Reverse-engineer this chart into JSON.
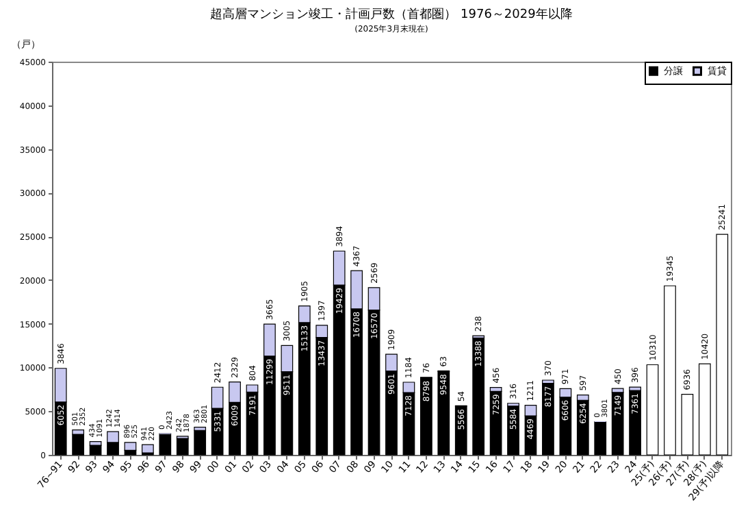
{
  "chart_data": {
    "type": "bar",
    "title": "超高層マンション竣工・計画戸数（首都圏） 1976～2029年以降",
    "ylabel": "（戸）",
    "categories": [
      "76~91",
      "92",
      "93",
      "94",
      "95",
      "96",
      "97",
      "98",
      "99",
      "00",
      "01",
      "02",
      "03",
      "04",
      "05",
      "06",
      "07",
      "08",
      "09",
      "10",
      "11",
      "12",
      "13",
      "14",
      "15",
      "16",
      "17",
      "18",
      "19",
      "20",
      "21",
      "22",
      "23",
      "24",
      "25(予)",
      "26(予)",
      "27(予)",
      "28(予)",
      "29(予)以降"
    ],
    "stacked": true,
    "data_labels": true,
    "legend": "top right",
    "ylim": [
      0,
      45000
    ],
    "yticks": [
      0,
      5000,
      10000,
      15000,
      20000,
      25000,
      30000,
      35000,
      40000,
      45000
    ],
    "series": [
      {
        "name": "分譲",
        "color": "#000000",
        "values": [
          6052,
          2352,
          1091,
          1414,
          525,
          220,
          2423,
          1878,
          2801,
          5331,
          6009,
          7191,
          11299,
          9511,
          15133,
          13437,
          19429,
          16708,
          16570,
          9601,
          7128,
          8798,
          9548,
          5566,
          13388,
          7259,
          5584,
          4469,
          8177,
          6606,
          6254,
          3801,
          7149,
          7361,
          null,
          null,
          null,
          null,
          null
        ]
      },
      {
        "name": "賃貸",
        "color": "#c8c8f0",
        "values": [
          3846,
          501,
          434,
          1242,
          896,
          941,
          0,
          242,
          363,
          2412,
          2329,
          804,
          3665,
          3005,
          1905,
          1397,
          3894,
          4367,
          2569,
          1909,
          1184,
          76,
          63,
          54,
          238,
          456,
          316,
          1211,
          370,
          971,
          597,
          0,
          450,
          396,
          null,
          null,
          null,
          null,
          null
        ]
      },
      {
        "color": "#ffffff",
        "values": [
          null,
          null,
          null,
          null,
          null,
          null,
          null,
          null,
          null,
          null,
          null,
          null,
          null,
          null,
          null,
          null,
          null,
          null,
          null,
          null,
          null,
          null,
          null,
          null,
          null,
          null,
          null,
          null,
          null,
          null,
          null,
          null,
          null,
          null,
          10310,
          19345,
          6936,
          10420,
          25241
        ]
      }
    ],
    "annotations": [
      "(2025年3月末現在)"
    ]
  }
}
